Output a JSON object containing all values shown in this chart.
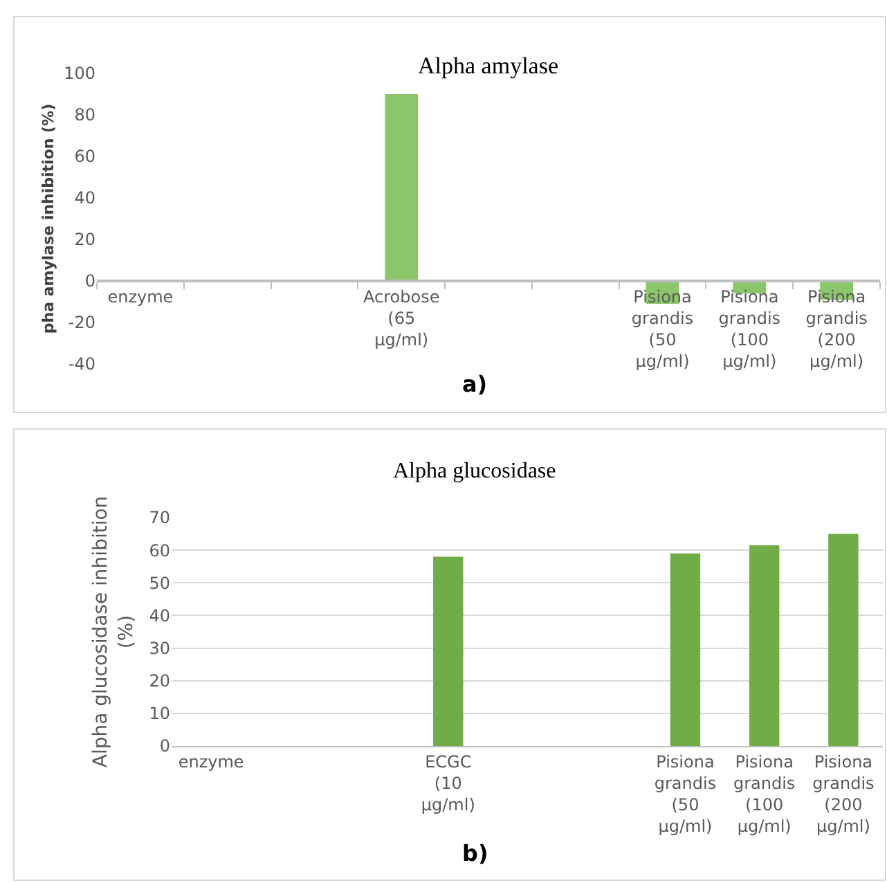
{
  "chart_data": [
    {
      "type": "bar",
      "title": "Alpha amylase",
      "ylabel": "pha amylase inhibition (%)",
      "categories": [
        "enzyme",
        null,
        null,
        "Acrobose (65 µg/ml)",
        null,
        null,
        "Pisiona grandis (50 µg/ml)",
        "Pisiona grandis (100 µg/ml)",
        "Pisiona grandis (200 µg/ml)"
      ],
      "values": [
        null,
        null,
        null,
        90,
        null,
        null,
        -11,
        -6,
        -9
      ],
      "color": "#8cc66a",
      "ylim": [
        -40,
        100
      ],
      "yticks": [
        -40,
        -20,
        0,
        20,
        40,
        60,
        80,
        100
      ],
      "grid": false,
      "annotations": [
        "a)"
      ]
    },
    {
      "type": "bar",
      "title": "Alpha glucosidase",
      "ylabel": "Alpha glucosidase inhibition (%)",
      "categories": [
        "enzyme",
        null,
        null,
        "ECGC (10 µg/ml)",
        null,
        null,
        "Pisiona grandis (50 µg/ml)",
        "Pisiona grandis (100 µg/ml)",
        "Pisiona grandis (200 µg/ml)"
      ],
      "values": [
        null,
        null,
        null,
        58,
        null,
        null,
        59,
        61.5,
        65
      ],
      "color": "#70ad47",
      "ylim": [
        0,
        70
      ],
      "yticks": [
        0,
        10,
        20,
        30,
        40,
        50,
        60,
        70
      ],
      "grid": "y",
      "annotations": [
        "b)"
      ]
    }
  ]
}
